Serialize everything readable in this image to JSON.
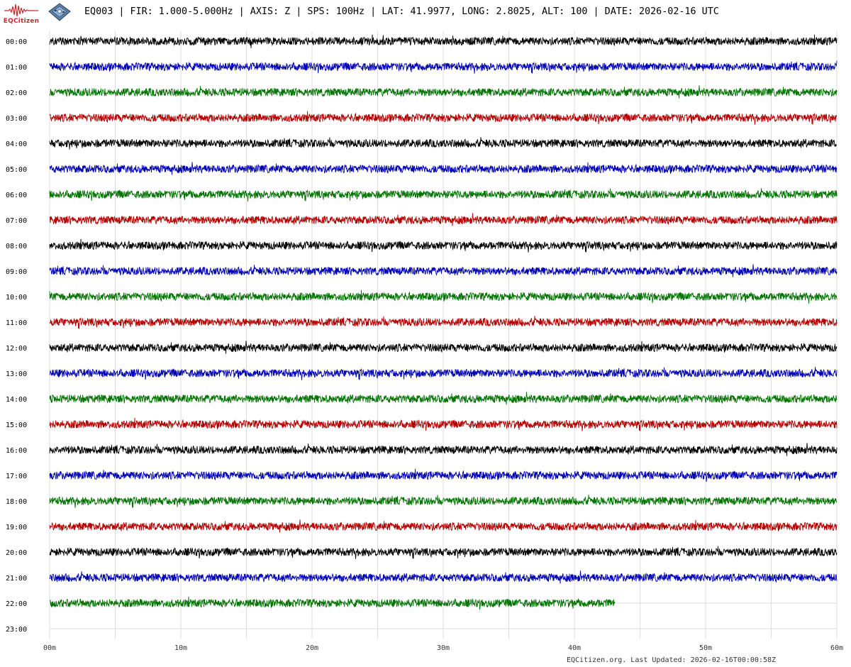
{
  "header": {
    "logo_text": "EQCitizen",
    "title": "EQ003 | FIR: 1.000-5.000Hz | AXIS: Z | SPS: 100Hz | LAT: 41.9977, LONG: 2.8025, ALT: 100 | DATE: 2026-02-16 UTC"
  },
  "footer": {
    "text": "EQCitizen.org. Last Updated: 2026-02-16T00:00:58Z"
  },
  "colors": {
    "trace_cycle": [
      "#000000",
      "#0000b4",
      "#007300",
      "#b40000"
    ],
    "grid": "#dddddd",
    "brand": "#c8282d"
  },
  "chart_data": {
    "type": "line",
    "title": "",
    "xlabel": "",
    "ylabel": "",
    "x_ticks": [
      "00m",
      "10m",
      "20m",
      "30m",
      "40m",
      "50m",
      "60m"
    ],
    "x_range_minutes": [
      0,
      60
    ],
    "grid": true,
    "hours": [
      "00:00",
      "01:00",
      "02:00",
      "03:00",
      "04:00",
      "05:00",
      "06:00",
      "07:00",
      "08:00",
      "09:00",
      "10:00",
      "11:00",
      "12:00",
      "13:00",
      "14:00",
      "15:00",
      "16:00",
      "17:00",
      "18:00",
      "19:00",
      "20:00",
      "21:00",
      "22:00",
      "23:00"
    ],
    "traces": [
      {
        "hour": "00:00",
        "end_minute": 60,
        "amplitude": 1.0
      },
      {
        "hour": "01:00",
        "end_minute": 60,
        "amplitude": 1.0
      },
      {
        "hour": "02:00",
        "end_minute": 60,
        "amplitude": 1.0
      },
      {
        "hour": "03:00",
        "end_minute": 60,
        "amplitude": 1.0
      },
      {
        "hour": "04:00",
        "end_minute": 60,
        "amplitude": 1.0
      },
      {
        "hour": "05:00",
        "end_minute": 60,
        "amplitude": 1.0
      },
      {
        "hour": "06:00",
        "end_minute": 60,
        "amplitude": 1.0
      },
      {
        "hour": "07:00",
        "end_minute": 60,
        "amplitude": 1.0
      },
      {
        "hour": "08:00",
        "end_minute": 60,
        "amplitude": 1.0
      },
      {
        "hour": "09:00",
        "end_minute": 60,
        "amplitude": 1.0
      },
      {
        "hour": "10:00",
        "end_minute": 60,
        "amplitude": 1.0
      },
      {
        "hour": "11:00",
        "end_minute": 60,
        "amplitude": 1.0
      },
      {
        "hour": "12:00",
        "end_minute": 60,
        "amplitude": 1.0
      },
      {
        "hour": "13:00",
        "end_minute": 60,
        "amplitude": 1.0
      },
      {
        "hour": "14:00",
        "end_minute": 60,
        "amplitude": 1.0
      },
      {
        "hour": "15:00",
        "end_minute": 60,
        "amplitude": 1.0
      },
      {
        "hour": "16:00",
        "end_minute": 60,
        "amplitude": 1.0
      },
      {
        "hour": "17:00",
        "end_minute": 60,
        "amplitude": 1.0
      },
      {
        "hour": "18:00",
        "end_minute": 60,
        "amplitude": 1.0
      },
      {
        "hour": "19:00",
        "end_minute": 60,
        "amplitude": 1.0
      },
      {
        "hour": "20:00",
        "end_minute": 60,
        "amplitude": 1.0
      },
      {
        "hour": "21:00",
        "end_minute": 60,
        "amplitude": 1.0
      },
      {
        "hour": "22:00",
        "end_minute": 43.1,
        "amplitude": 1.0
      }
    ]
  }
}
